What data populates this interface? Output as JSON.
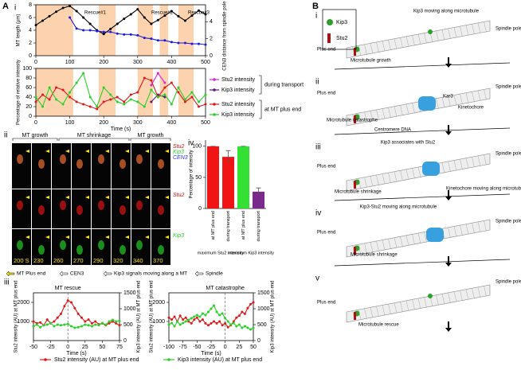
{
  "figure": {
    "panel_labels": [
      "A",
      "i",
      "ii",
      "iii",
      "iv"
    ]
  },
  "chart_data": [
    {
      "type": "line",
      "ylabel": "MT length (μm)",
      "y2label": "CEN3 distance from spindle pole (μm)",
      "annotations": [
        "Rescue#1",
        "Rescue#2",
        "Rescue#3"
      ],
      "xlim": [
        0,
        500
      ],
      "xticks": [
        0,
        100,
        200,
        300,
        400,
        500
      ],
      "ylim": [
        0,
        8
      ],
      "yticks": [
        0,
        2,
        4,
        6,
        8
      ],
      "y2lim": [
        0,
        6
      ],
      "y2ticks": [
        0,
        2,
        4
      ],
      "bands": [
        [
          0,
          110
        ],
        [
          185,
          235
        ],
        [
          300,
          345
        ],
        [
          365,
          390
        ],
        [
          420,
          465
        ]
      ],
      "band_color": "#fcd3ae",
      "x": [
        0,
        20,
        40,
        60,
        80,
        100,
        120,
        140,
        160,
        180,
        200,
        220,
        240,
        260,
        280,
        300,
        320,
        340,
        360,
        380,
        400,
        420,
        440,
        460,
        480,
        500
      ],
      "series": [
        {
          "color": "#000000",
          "markers": true,
          "values": [
            4.8,
            5.5,
            6.2,
            6.9,
            7.5,
            7.8,
            7.0,
            6.0,
            5.0,
            4.0,
            3.4,
            4.2,
            5.0,
            5.8,
            6.5,
            7.3,
            6.0,
            5.0,
            5.6,
            6.3,
            7.0,
            6.2,
            5.5,
            6.3,
            7.1,
            6.5
          ]
        },
        {
          "color": "#1a1ae0",
          "markers": true,
          "axis": "y2",
          "values": [
            null,
            null,
            null,
            null,
            null,
            4.5,
            3.2,
            3.0,
            3.0,
            2.9,
            2.8,
            2.8,
            2.6,
            2.5,
            2.5,
            2.4,
            2.1,
            2.0,
            1.8,
            1.8,
            1.6,
            1.5,
            1.5,
            1.4,
            1.4,
            1.3
          ]
        }
      ]
    },
    {
      "type": "line",
      "ylabel": "Percentage of relative intensity",
      "xlabel": "Time (s)",
      "legend_groups": [
        "during transport",
        "at MT plus end"
      ],
      "xlim": [
        0,
        500
      ],
      "xticks": [
        0,
        100,
        200,
        300,
        400,
        500
      ],
      "ylim": [
        0,
        100
      ],
      "yticks": [
        0,
        20,
        40,
        60,
        80,
        100
      ],
      "bands": [
        [
          0,
          110
        ],
        [
          185,
          235
        ],
        [
          300,
          345
        ],
        [
          365,
          390
        ],
        [
          420,
          465
        ]
      ],
      "band_color": "#fcd3ae",
      "x": [
        0,
        20,
        40,
        60,
        80,
        100,
        120,
        140,
        160,
        180,
        200,
        220,
        240,
        260,
        280,
        300,
        320,
        340,
        360,
        380,
        400,
        420,
        440,
        460,
        480,
        500
      ],
      "series": [
        {
          "name": "Stu2 intensity",
          "color": "#e020e0",
          "markers": true,
          "values": [
            null,
            null,
            null,
            null,
            null,
            null,
            null,
            null,
            null,
            null,
            null,
            null,
            null,
            null,
            null,
            null,
            null,
            65,
            90,
            70,
            null,
            null,
            null,
            null,
            null,
            null
          ]
        },
        {
          "name": "Kip3 intensity",
          "color": "#5a1a7a",
          "markers": true,
          "values": [
            null,
            null,
            null,
            null,
            null,
            null,
            null,
            null,
            null,
            null,
            null,
            null,
            null,
            null,
            null,
            null,
            null,
            30,
            45,
            40,
            null,
            null,
            null,
            null,
            null,
            null
          ]
        },
        {
          "name": "Stu2 intensity",
          "color": "#e01818",
          "markers": true,
          "values": [
            30,
            45,
            35,
            60,
            55,
            40,
            30,
            25,
            20,
            15,
            30,
            35,
            40,
            30,
            45,
            50,
            80,
            75,
            40,
            60,
            70,
            50,
            30,
            40,
            20,
            25
          ]
        },
        {
          "name": "Kip3 intensity",
          "color": "#28d028",
          "markers": true,
          "values": [
            40,
            20,
            60,
            35,
            25,
            50,
            70,
            90,
            40,
            20,
            60,
            45,
            30,
            25,
            35,
            30,
            20,
            55,
            40,
            45,
            25,
            60,
            35,
            50,
            30,
            45
          ]
        }
      ]
    },
    {
      "type": "bar",
      "ylabel": "Percentage of intensity",
      "categories": [
        "at MT plus end",
        "during transport",
        "at MT plus end",
        "during transport"
      ],
      "groups": [
        "maximum Stu2 intensity",
        "maximum Kip3 intensity"
      ],
      "values": [
        100,
        83,
        100,
        27
      ],
      "errors": [
        0,
        10,
        0,
        6
      ],
      "colors": [
        "#f01414",
        "#f01414",
        "#33e033",
        "#7a2a8a"
      ],
      "ylim": [
        0,
        110
      ],
      "yticks": [
        0,
        50,
        100
      ]
    },
    {
      "type": "line",
      "title": "MT rescue",
      "xlabel": "Time (s)",
      "ylabel": "Stu2 intensity (AU) at MT plus end",
      "y2label": "Kip3 intensity (AU) at MT plus end",
      "vline": 0,
      "xlim": [
        -50,
        75
      ],
      "xticks": [
        -50,
        -25,
        0,
        25,
        50,
        75
      ],
      "ylim": [
        0,
        2500
      ],
      "yticks": [
        1000,
        2000
      ],
      "y2lim": [
        0,
        1500
      ],
      "y2ticks": [
        0,
        500,
        1000,
        1500
      ],
      "x": [
        -50,
        -45,
        -40,
        -35,
        -30,
        -25,
        -20,
        -15,
        -10,
        -5,
        0,
        5,
        10,
        15,
        20,
        25,
        30,
        35,
        40,
        45,
        50,
        55,
        60,
        65,
        70,
        75
      ],
      "series": [
        {
          "name": "Stu2 intensity (AU) at MT plus end",
          "color": "#e01818",
          "markers": true,
          "values": [
            1000,
            900,
            950,
            800,
            1100,
            900,
            1000,
            1200,
            1400,
            1800,
            2100,
            2000,
            1700,
            1400,
            1200,
            1000,
            1100,
            900,
            1000,
            850,
            900,
            800,
            900,
            1000,
            900,
            800
          ]
        },
        {
          "name": "Kip3 intensity (AU) at MT plus end",
          "color": "#28d028",
          "markers": true,
          "axis": "y2",
          "values": [
            450,
            500,
            420,
            480,
            500,
            550,
            450,
            500,
            480,
            500,
            520,
            450,
            400,
            420,
            450,
            500,
            480,
            450,
            500,
            480,
            550,
            500,
            600,
            650,
            600,
            620
          ]
        }
      ]
    },
    {
      "type": "line",
      "title": "MT catastrophe",
      "xlabel": "Time (s)",
      "ylabel": "Stu2 intensity (AU) at MT plus end",
      "y2label": "Kip3 intensity (AU) at MT plus end",
      "vline": 0,
      "xlim": [
        -100,
        50
      ],
      "xticks": [
        -100,
        -75,
        -50,
        -25,
        0,
        25,
        50
      ],
      "ylim": [
        0,
        2500
      ],
      "yticks": [
        1000,
        2000
      ],
      "y2lim": [
        0,
        1500
      ],
      "y2ticks": [
        0,
        500,
        1000,
        1500
      ],
      "x": [
        -100,
        -95,
        -90,
        -85,
        -80,
        -75,
        -70,
        -65,
        -60,
        -55,
        -50,
        -45,
        -40,
        -35,
        -30,
        -25,
        -20,
        -15,
        -10,
        -5,
        0,
        5,
        10,
        15,
        20,
        25,
        30,
        35,
        40,
        45,
        50
      ],
      "series": [
        {
          "color": "#e01818",
          "markers": true,
          "values": [
            1200,
            1100,
            1250,
            1000,
            1300,
            1100,
            1200,
            1000,
            900,
            1100,
            1200,
            1000,
            1100,
            900,
            800,
            900,
            1000,
            900,
            1000,
            800,
            900,
            700,
            800,
            1000,
            1200,
            1300,
            1500,
            1400,
            1700,
            1900,
            2000
          ]
        },
        {
          "color": "#28d028",
          "markers": true,
          "axis": "y2",
          "values": [
            500,
            550,
            450,
            600,
            500,
            550,
            600,
            650,
            700,
            750,
            800,
            750,
            850,
            800,
            900,
            1000,
            1100,
            900,
            800,
            850,
            700,
            600,
            500,
            550,
            450,
            500,
            400,
            450,
            400,
            350,
            400
          ]
        }
      ]
    }
  ],
  "panel_ii": {
    "headers": [
      "MT growth",
      "MT shrinkage",
      "MT growth"
    ],
    "channels": [
      "Stu2",
      "Kip3",
      "CEN3"
    ],
    "row_labels": [
      "Stu2",
      "Kip3"
    ],
    "times": [
      "200 S",
      "230",
      "260",
      "270",
      "290",
      "320",
      "340",
      "370"
    ],
    "legend": [
      "MT Plus end",
      "CEN3",
      "Kip3 signals moving along a MT",
      "Spindle"
    ]
  },
  "panel_b": {
    "label": "B",
    "rows": [
      {
        "numeral": "i",
        "legend": [
          "Kip3",
          "Stu2"
        ],
        "texts": [
          "Kip3 moving along microtubule",
          "Spindle pole",
          "Plus end",
          "Microtubule growth"
        ]
      },
      {
        "numeral": "ii",
        "texts": [
          "Spindle pole",
          "Plus end",
          "Microtubule catastrophe",
          "Kar3",
          "Kinetochore",
          "Centromere DNA"
        ]
      },
      {
        "numeral": "iii",
        "texts": [
          "Kip3 associates with Stu2",
          "Spindle pole",
          "Plus end",
          "Microtubule shrinkage",
          "Kinetochore moving along microtubule"
        ]
      },
      {
        "numeral": "iv",
        "texts": [
          "Kip3-Stu2 moving along microtubule",
          "Spindle pole",
          "Plus end",
          "Microtubule shrinkage"
        ]
      },
      {
        "numeral": "v",
        "texts": [
          "Spindle pole",
          "Plus end",
          "Microtubule rescue"
        ]
      }
    ]
  }
}
